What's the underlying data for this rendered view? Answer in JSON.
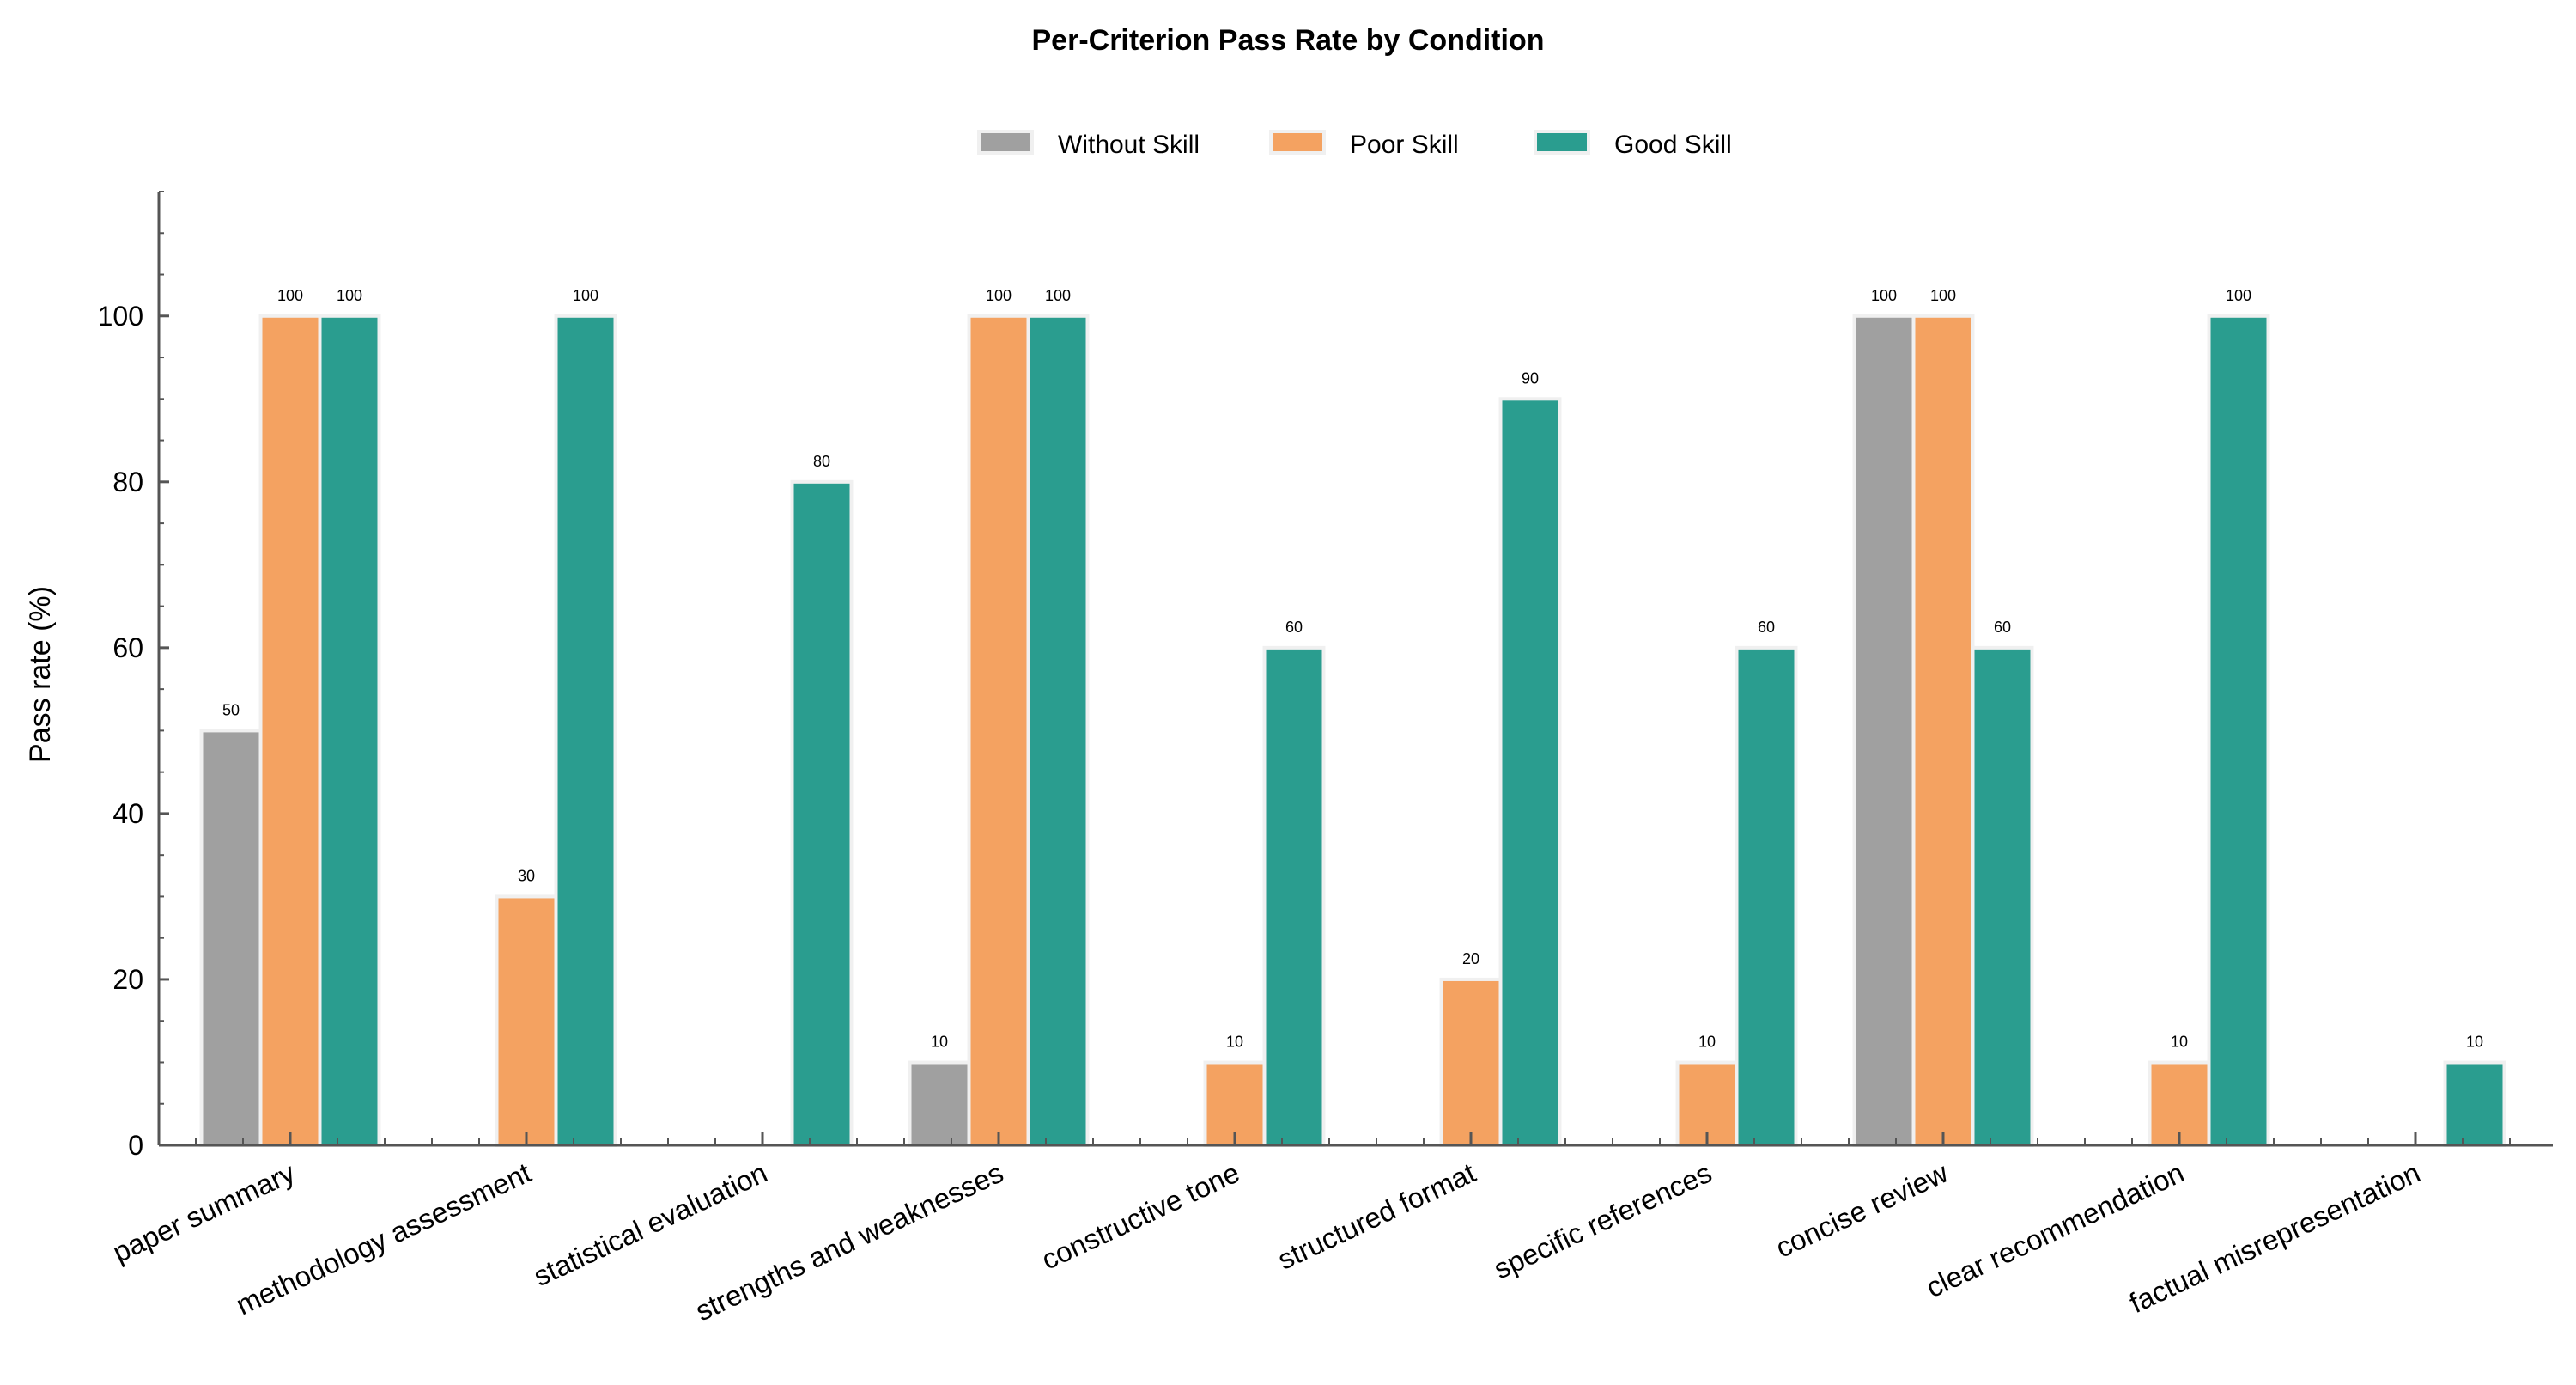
{
  "chart_data": {
    "type": "bar",
    "title": "Per-Criterion Pass Rate by Condition",
    "xlabel": "",
    "ylabel": "Pass rate (%)",
    "ylim": [
      0,
      115
    ],
    "yticks": [
      0,
      20,
      40,
      60,
      80,
      100
    ],
    "grid": false,
    "legend_placement": "top-center",
    "categories": [
      "paper summary",
      "methodology assessment",
      "statistical evaluation",
      "strengths and weaknesses",
      "constructive tone",
      "structured format",
      "specific references",
      "concise review",
      "clear recommendation",
      "factual misrepresentation"
    ],
    "series": [
      {
        "name": "Without Skill",
        "color": "#a0a0a0",
        "values": [
          50,
          0,
          0,
          10,
          0,
          0,
          0,
          100,
          0,
          0
        ]
      },
      {
        "name": "Poor Skill",
        "color": "#f4a261",
        "values": [
          100,
          30,
          0,
          100,
          10,
          20,
          10,
          100,
          10,
          0
        ]
      },
      {
        "name": "Good Skill",
        "color": "#2a9d8f",
        "values": [
          100,
          100,
          80,
          100,
          60,
          90,
          60,
          60,
          100,
          10
        ]
      }
    ]
  }
}
